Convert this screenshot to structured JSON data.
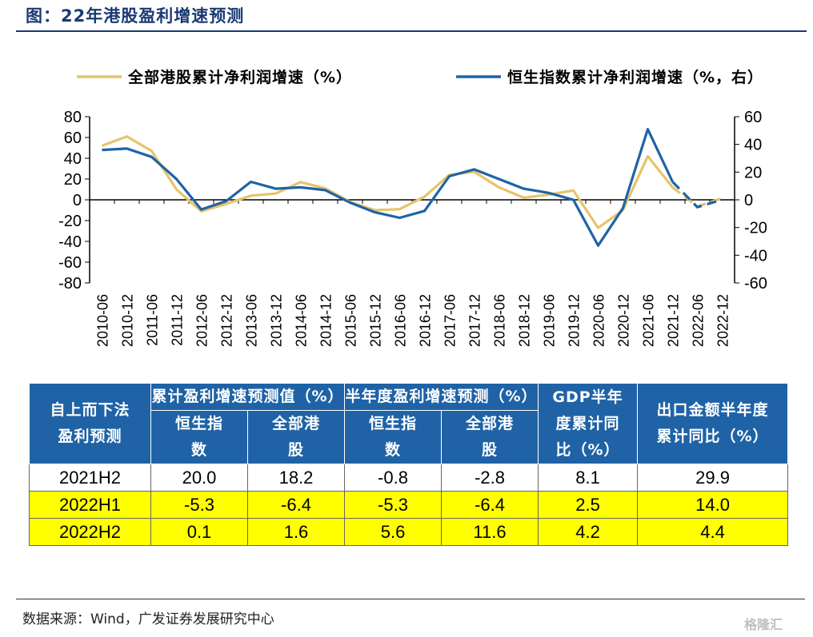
{
  "title": "图：22年港股盈利增速预测",
  "chart_data": {
    "type": "line",
    "x": [
      "2010-06",
      "2010-12",
      "2011-06",
      "2011-12",
      "2012-06",
      "2012-12",
      "2013-06",
      "2013-12",
      "2014-06",
      "2014-12",
      "2015-06",
      "2015-12",
      "2016-06",
      "2016-12",
      "2017-06",
      "2017-12",
      "2018-06",
      "2018-12",
      "2019-06",
      "2019-12",
      "2020-06",
      "2020-12",
      "2021-06",
      "2021-12",
      "2022-06",
      "2022-12"
    ],
    "series": [
      {
        "name": "全部港股累计净利润增速（%）",
        "axis": "left",
        "color": "#e6c46a",
        "values": [
          52,
          61,
          47,
          10,
          -11,
          -4,
          4,
          6,
          17,
          11,
          -2,
          -10,
          -9,
          3,
          24,
          27,
          12,
          2,
          5,
          9,
          -27,
          -10,
          42,
          12,
          null,
          null
        ],
        "forecast_values": [
          null,
          null,
          null,
          null,
          null,
          null,
          null,
          null,
          null,
          null,
          null,
          null,
          null,
          null,
          null,
          null,
          null,
          null,
          null,
          null,
          null,
          null,
          null,
          12,
          -6.4,
          1.6
        ]
      },
      {
        "name": "恒生指数累计净利润增速（%，右）",
        "axis": "right",
        "color": "#1f63a6",
        "values": [
          36,
          37,
          31,
          15,
          -7,
          -1,
          13,
          8,
          9,
          7,
          -2,
          -9,
          -13,
          -8,
          17,
          22,
          15,
          8,
          5,
          0,
          -33,
          -6,
          51,
          13,
          null,
          null
        ],
        "forecast_values": [
          null,
          null,
          null,
          null,
          null,
          null,
          null,
          null,
          null,
          null,
          null,
          null,
          null,
          null,
          null,
          null,
          null,
          null,
          null,
          null,
          null,
          null,
          null,
          13,
          -5.3,
          0.1
        ]
      }
    ],
    "ylim_left": [
      -80,
      80
    ],
    "yticks_left": [
      "80",
      "60",
      "40",
      "20",
      "0",
      "-20",
      "-40",
      "-60",
      "-80"
    ],
    "ylim_right": [
      -60,
      60
    ],
    "yticks_right": [
      "60",
      "40",
      "20",
      "0",
      "-20",
      "-40",
      "-60"
    ],
    "legend_position": "top",
    "grid": false
  },
  "table": {
    "header_row1": [
      "自上而下法盈利预测",
      "累计盈利增速预测值（%）",
      "半年度盈利增速预测（%）",
      "GDP半年度累计同比（%）",
      "出口金额半年度累计同比（%）"
    ],
    "header_row2": [
      "恒生指数",
      "全部港股",
      "恒生指数",
      "全部港股"
    ],
    "rows": [
      {
        "highlight": false,
        "cells": [
          "2021H2",
          "20.0",
          "18.2",
          "-0.8",
          "-2.8",
          "8.1",
          "29.9"
        ]
      },
      {
        "highlight": true,
        "cells": [
          "2022H1",
          "-5.3",
          "-6.4",
          "-5.3",
          "-6.4",
          "2.5",
          "14.0"
        ]
      },
      {
        "highlight": true,
        "cells": [
          "2022H2",
          "0.1",
          "1.6",
          "5.6",
          "11.6",
          "4.2",
          "4.4"
        ]
      }
    ]
  },
  "source": "数据来源：Wind，广发证券发展研究中心",
  "watermark": "格隆汇"
}
